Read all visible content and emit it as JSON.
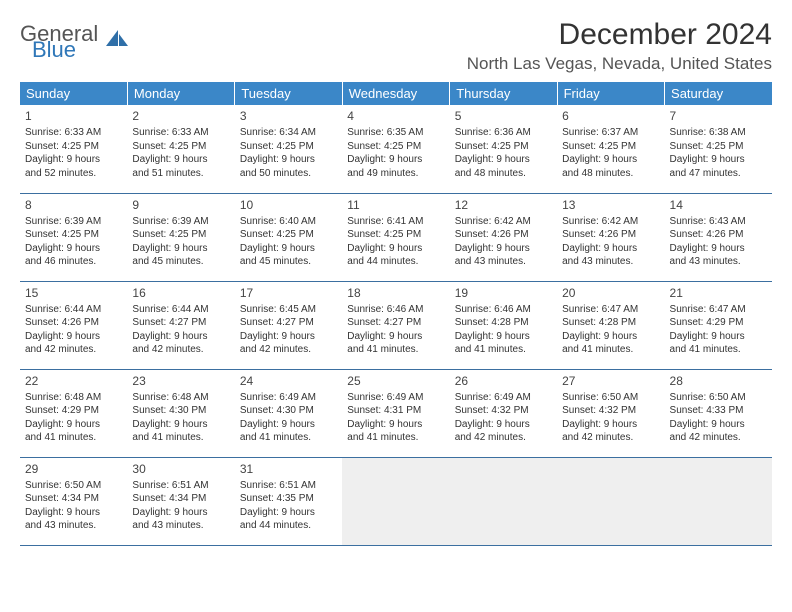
{
  "logo": {
    "general": "General",
    "blue": "Blue"
  },
  "title": "December 2024",
  "location": "North Las Vegas, Nevada, United States",
  "colors": {
    "header_bg": "#3b87c8",
    "header_text": "#ffffff",
    "row_border": "#3b6fa0",
    "shaded_bg": "#efefef",
    "text": "#333333",
    "logo_blue": "#2f77b8"
  },
  "weekdays": [
    "Sunday",
    "Monday",
    "Tuesday",
    "Wednesday",
    "Thursday",
    "Friday",
    "Saturday"
  ],
  "weeks": [
    [
      {
        "day": "1",
        "sunrise": "Sunrise: 6:33 AM",
        "sunset": "Sunset: 4:25 PM",
        "dl1": "Daylight: 9 hours",
        "dl2": "and 52 minutes."
      },
      {
        "day": "2",
        "sunrise": "Sunrise: 6:33 AM",
        "sunset": "Sunset: 4:25 PM",
        "dl1": "Daylight: 9 hours",
        "dl2": "and 51 minutes."
      },
      {
        "day": "3",
        "sunrise": "Sunrise: 6:34 AM",
        "sunset": "Sunset: 4:25 PM",
        "dl1": "Daylight: 9 hours",
        "dl2": "and 50 minutes."
      },
      {
        "day": "4",
        "sunrise": "Sunrise: 6:35 AM",
        "sunset": "Sunset: 4:25 PM",
        "dl1": "Daylight: 9 hours",
        "dl2": "and 49 minutes."
      },
      {
        "day": "5",
        "sunrise": "Sunrise: 6:36 AM",
        "sunset": "Sunset: 4:25 PM",
        "dl1": "Daylight: 9 hours",
        "dl2": "and 48 minutes."
      },
      {
        "day": "6",
        "sunrise": "Sunrise: 6:37 AM",
        "sunset": "Sunset: 4:25 PM",
        "dl1": "Daylight: 9 hours",
        "dl2": "and 48 minutes."
      },
      {
        "day": "7",
        "sunrise": "Sunrise: 6:38 AM",
        "sunset": "Sunset: 4:25 PM",
        "dl1": "Daylight: 9 hours",
        "dl2": "and 47 minutes."
      }
    ],
    [
      {
        "day": "8",
        "sunrise": "Sunrise: 6:39 AM",
        "sunset": "Sunset: 4:25 PM",
        "dl1": "Daylight: 9 hours",
        "dl2": "and 46 minutes."
      },
      {
        "day": "9",
        "sunrise": "Sunrise: 6:39 AM",
        "sunset": "Sunset: 4:25 PM",
        "dl1": "Daylight: 9 hours",
        "dl2": "and 45 minutes."
      },
      {
        "day": "10",
        "sunrise": "Sunrise: 6:40 AM",
        "sunset": "Sunset: 4:25 PM",
        "dl1": "Daylight: 9 hours",
        "dl2": "and 45 minutes."
      },
      {
        "day": "11",
        "sunrise": "Sunrise: 6:41 AM",
        "sunset": "Sunset: 4:25 PM",
        "dl1": "Daylight: 9 hours",
        "dl2": "and 44 minutes."
      },
      {
        "day": "12",
        "sunrise": "Sunrise: 6:42 AM",
        "sunset": "Sunset: 4:26 PM",
        "dl1": "Daylight: 9 hours",
        "dl2": "and 43 minutes."
      },
      {
        "day": "13",
        "sunrise": "Sunrise: 6:42 AM",
        "sunset": "Sunset: 4:26 PM",
        "dl1": "Daylight: 9 hours",
        "dl2": "and 43 minutes."
      },
      {
        "day": "14",
        "sunrise": "Sunrise: 6:43 AM",
        "sunset": "Sunset: 4:26 PM",
        "dl1": "Daylight: 9 hours",
        "dl2": "and 43 minutes."
      }
    ],
    [
      {
        "day": "15",
        "sunrise": "Sunrise: 6:44 AM",
        "sunset": "Sunset: 4:26 PM",
        "dl1": "Daylight: 9 hours",
        "dl2": "and 42 minutes."
      },
      {
        "day": "16",
        "sunrise": "Sunrise: 6:44 AM",
        "sunset": "Sunset: 4:27 PM",
        "dl1": "Daylight: 9 hours",
        "dl2": "and 42 minutes."
      },
      {
        "day": "17",
        "sunrise": "Sunrise: 6:45 AM",
        "sunset": "Sunset: 4:27 PM",
        "dl1": "Daylight: 9 hours",
        "dl2": "and 42 minutes."
      },
      {
        "day": "18",
        "sunrise": "Sunrise: 6:46 AM",
        "sunset": "Sunset: 4:27 PM",
        "dl1": "Daylight: 9 hours",
        "dl2": "and 41 minutes."
      },
      {
        "day": "19",
        "sunrise": "Sunrise: 6:46 AM",
        "sunset": "Sunset: 4:28 PM",
        "dl1": "Daylight: 9 hours",
        "dl2": "and 41 minutes."
      },
      {
        "day": "20",
        "sunrise": "Sunrise: 6:47 AM",
        "sunset": "Sunset: 4:28 PM",
        "dl1": "Daylight: 9 hours",
        "dl2": "and 41 minutes."
      },
      {
        "day": "21",
        "sunrise": "Sunrise: 6:47 AM",
        "sunset": "Sunset: 4:29 PM",
        "dl1": "Daylight: 9 hours",
        "dl2": "and 41 minutes."
      }
    ],
    [
      {
        "day": "22",
        "sunrise": "Sunrise: 6:48 AM",
        "sunset": "Sunset: 4:29 PM",
        "dl1": "Daylight: 9 hours",
        "dl2": "and 41 minutes."
      },
      {
        "day": "23",
        "sunrise": "Sunrise: 6:48 AM",
        "sunset": "Sunset: 4:30 PM",
        "dl1": "Daylight: 9 hours",
        "dl2": "and 41 minutes."
      },
      {
        "day": "24",
        "sunrise": "Sunrise: 6:49 AM",
        "sunset": "Sunset: 4:30 PM",
        "dl1": "Daylight: 9 hours",
        "dl2": "and 41 minutes."
      },
      {
        "day": "25",
        "sunrise": "Sunrise: 6:49 AM",
        "sunset": "Sunset: 4:31 PM",
        "dl1": "Daylight: 9 hours",
        "dl2": "and 41 minutes."
      },
      {
        "day": "26",
        "sunrise": "Sunrise: 6:49 AM",
        "sunset": "Sunset: 4:32 PM",
        "dl1": "Daylight: 9 hours",
        "dl2": "and 42 minutes."
      },
      {
        "day": "27",
        "sunrise": "Sunrise: 6:50 AM",
        "sunset": "Sunset: 4:32 PM",
        "dl1": "Daylight: 9 hours",
        "dl2": "and 42 minutes."
      },
      {
        "day": "28",
        "sunrise": "Sunrise: 6:50 AM",
        "sunset": "Sunset: 4:33 PM",
        "dl1": "Daylight: 9 hours",
        "dl2": "and 42 minutes."
      }
    ],
    [
      {
        "day": "29",
        "sunrise": "Sunrise: 6:50 AM",
        "sunset": "Sunset: 4:34 PM",
        "dl1": "Daylight: 9 hours",
        "dl2": "and 43 minutes."
      },
      {
        "day": "30",
        "sunrise": "Sunrise: 6:51 AM",
        "sunset": "Sunset: 4:34 PM",
        "dl1": "Daylight: 9 hours",
        "dl2": "and 43 minutes."
      },
      {
        "day": "31",
        "sunrise": "Sunrise: 6:51 AM",
        "sunset": "Sunset: 4:35 PM",
        "dl1": "Daylight: 9 hours",
        "dl2": "and 44 minutes."
      },
      {
        "shaded": true
      },
      {
        "shaded": true
      },
      {
        "shaded": true
      },
      {
        "shaded": true
      }
    ]
  ]
}
